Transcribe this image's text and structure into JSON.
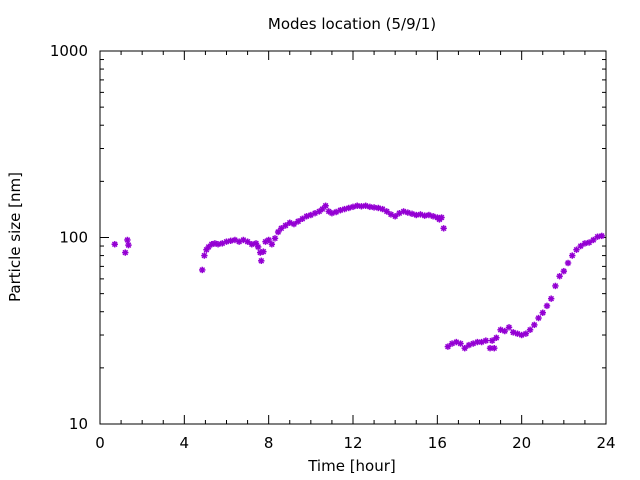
{
  "chart_data": {
    "type": "scatter",
    "title": "Modes location (5/9/1)",
    "xlabel": "Time [hour]",
    "ylabel": "Particle size [nm]",
    "xlim": [
      0,
      24
    ],
    "ylim": [
      10,
      1000
    ],
    "yscale": "log",
    "x_ticks": [
      0,
      4,
      8,
      12,
      16,
      20,
      24
    ],
    "x_tick_labels": [
      "0",
      "4",
      "8",
      "12",
      "16",
      "20",
      "24"
    ],
    "y_ticks": [
      10,
      100,
      1000
    ],
    "y_tick_labels": [
      "10",
      "100",
      "1000"
    ],
    "grid": false,
    "legend": "none",
    "series": [
      {
        "color": "#9400d3",
        "marker": "asterisk",
        "x": [
          0.7,
          1.2,
          1.3,
          1.35,
          4.85,
          4.95,
          5.05,
          5.15,
          5.3,
          5.45,
          5.6,
          5.8,
          6.0,
          6.2,
          6.4,
          6.6,
          6.8,
          7.0,
          7.2,
          7.4,
          7.5,
          7.6,
          7.65,
          7.75,
          7.85,
          8.0,
          8.15,
          8.3,
          8.45,
          8.6,
          8.8,
          9.0,
          9.2,
          9.4,
          9.6,
          9.8,
          10.0,
          10.2,
          10.4,
          10.55,
          10.7,
          10.85,
          11.0,
          11.2,
          11.4,
          11.6,
          11.8,
          12.0,
          12.2,
          12.4,
          12.6,
          12.8,
          13.0,
          13.2,
          13.4,
          13.6,
          13.8,
          14.0,
          14.2,
          14.4,
          14.6,
          14.8,
          15.0,
          15.2,
          15.4,
          15.6,
          15.8,
          16.0,
          16.1,
          16.2,
          16.3,
          16.5,
          16.7,
          16.9,
          17.1,
          17.3,
          17.5,
          17.7,
          17.9,
          18.1,
          18.3,
          18.5,
          18.6,
          18.7,
          18.8,
          19.0,
          19.2,
          19.4,
          19.6,
          19.8,
          20.0,
          20.2,
          20.4,
          20.6,
          20.8,
          21.0,
          21.2,
          21.4,
          21.6,
          21.8,
          22.0,
          22.2,
          22.4,
          22.6,
          22.8,
          23.0,
          23.2,
          23.4,
          23.6,
          23.8
        ],
        "y": [
          92,
          83,
          97,
          91,
          67,
          80,
          86,
          89,
          92,
          93,
          92,
          93,
          95,
          96,
          97,
          95,
          97,
          95,
          92,
          93,
          89,
          83,
          75,
          84,
          95,
          97,
          92,
          99,
          107,
          112,
          116,
          120,
          118,
          122,
          126,
          130,
          132,
          135,
          138,
          142,
          148,
          138,
          135,
          137,
          140,
          142,
          144,
          146,
          148,
          147,
          148,
          146,
          145,
          144,
          142,
          138,
          133,
          130,
          135,
          138,
          136,
          134,
          132,
          133,
          131,
          132,
          130,
          128,
          125,
          128,
          112,
          26,
          27,
          27.5,
          27,
          25.5,
          26.5,
          27,
          27.5,
          27.5,
          28,
          25.5,
          28,
          25.5,
          29,
          32,
          31.5,
          33,
          31,
          30.5,
          30,
          30.5,
          32,
          34,
          37,
          39.5,
          43,
          47,
          55,
          62,
          66,
          73,
          80,
          86,
          90,
          93,
          94,
          97,
          101,
          102
        ]
      }
    ]
  }
}
